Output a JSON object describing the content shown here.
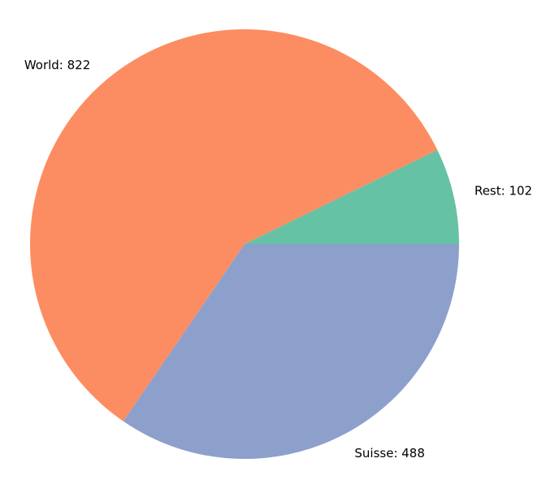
{
  "chart_data": {
    "type": "pie",
    "title": "",
    "slices": [
      {
        "label": "Rest: 102",
        "name": "Rest",
        "value": 102,
        "color": "#66c2a5"
      },
      {
        "label": "World: 822",
        "name": "World",
        "value": 822,
        "color": "#fc8d62"
      },
      {
        "label": "Suisse: 488",
        "name": "Suisse",
        "value": 488,
        "color": "#8da0cb"
      }
    ],
    "start_angle": 0,
    "direction": "counterclockwise",
    "legend": "none"
  }
}
